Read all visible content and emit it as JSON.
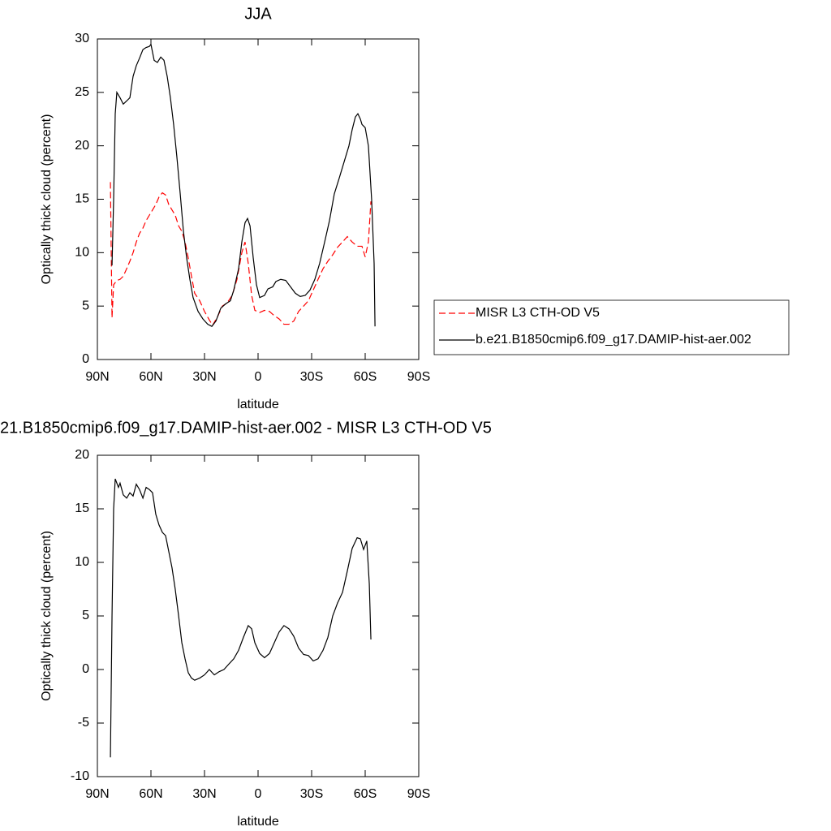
{
  "chart_data": [
    {
      "type": "line",
      "title": "JJA",
      "xlabel": "latitude",
      "ylabel": "Optically thick cloud (percent)",
      "xlim": [
        90,
        -90
      ],
      "ylim": [
        0,
        30
      ],
      "xticks": [
        {
          "value": 90,
          "label": "90N"
        },
        {
          "value": 60,
          "label": "60N"
        },
        {
          "value": 30,
          "label": "30N"
        },
        0,
        {
          "value": -30,
          "label": "30S"
        },
        {
          "value": -60,
          "label": "60S"
        },
        {
          "value": -90,
          "label": "90S"
        }
      ],
      "yticks": [
        0,
        5,
        10,
        15,
        20,
        25,
        30
      ],
      "legend": "right",
      "series": [
        {
          "name": "MISR L3 CTH-OD V5",
          "color": "#ff0000",
          "dash": true,
          "x": [
            82.7,
            81.8,
            80.9,
            79.1,
            77.3,
            75.5,
            73.6,
            71.8,
            70,
            68.2,
            66.4,
            64.5,
            62.7,
            60.9,
            59.1,
            57.3,
            55.5,
            53.6,
            51.8,
            50,
            48.2,
            46.4,
            44.5,
            42.7,
            40.9,
            39.1,
            37.3,
            35.5,
            32.7,
            30,
            27.3,
            25.5,
            22.7,
            20,
            17.3,
            14.5,
            11.8,
            9.1,
            7.3,
            5.5,
            3.6,
            1.8,
            -0.9,
            -3.6,
            -6.4,
            -9.1,
            -11.8,
            -14.5,
            -17.3,
            -20,
            -22.7,
            -25.5,
            -28.2,
            -30.9,
            -33.6,
            -36.4,
            -39.1,
            -41.8,
            -44.5,
            -47.3,
            -50,
            -52.7,
            -55.5,
            -58.2,
            -60,
            -61.8,
            -63.2
          ],
          "values": [
            16.6,
            3.9,
            7,
            7.4,
            7.5,
            7.8,
            8.5,
            9.2,
            10,
            11,
            11.8,
            12.3,
            13,
            13.5,
            14,
            14.5,
            15.2,
            15.6,
            15.4,
            14.5,
            14,
            13.5,
            12.5,
            12,
            11,
            9.5,
            7.8,
            6.2,
            5.5,
            4.5,
            3.7,
            3.2,
            4,
            5,
            5.3,
            6,
            7.5,
            10,
            11,
            9,
            6,
            4.6,
            4.4,
            4.6,
            4.5,
            4.1,
            3.8,
            3.3,
            3.3,
            3.6,
            4.5,
            5,
            5.5,
            6.5,
            7.5,
            8.5,
            9.2,
            9.8,
            10.5,
            11,
            11.5,
            11,
            10.6,
            10.6,
            9.6,
            11,
            14.8
          ]
        },
        {
          "name": "b.e21.B1850cmip6.f09_g17.DAMIP-hist-aer.002",
          "color": "#000000",
          "dash": false,
          "x": [
            81.8,
            80.9,
            80,
            79.1,
            77.3,
            75.5,
            73.6,
            71.8,
            70,
            68.2,
            66.4,
            64.5,
            62.7,
            60.9,
            60,
            58.2,
            56.4,
            54.5,
            52.7,
            50.9,
            49.1,
            47.3,
            45.5,
            43.6,
            41.8,
            40,
            38.2,
            36.4,
            33.6,
            30.9,
            28.2,
            25.9,
            23.6,
            20.9,
            18.2,
            15.5,
            13.6,
            10.9,
            9.1,
            7.3,
            5.9,
            4.5,
            2.7,
            0.9,
            -0.9,
            -3.6,
            -5.5,
            -8.2,
            -10,
            -12.7,
            -15.5,
            -18.2,
            -20.9,
            -23.6,
            -26.4,
            -29.1,
            -31.8,
            -34.5,
            -37.3,
            -40,
            -42.7,
            -45.5,
            -48.2,
            -50.9,
            -52.7,
            -54.5,
            -55.9,
            -57.3,
            -58.2,
            -60,
            -61.8,
            -63.6,
            -65,
            -65.5
          ],
          "values": [
            8.8,
            15,
            23,
            25,
            24.5,
            23.9,
            24.2,
            24.5,
            26.5,
            27.5,
            28.2,
            29,
            29.2,
            29.3,
            29.5,
            28,
            27.8,
            28.3,
            28,
            26.5,
            24.5,
            22,
            19,
            15.5,
            12,
            9.5,
            7.5,
            5.8,
            4.5,
            3.8,
            3.3,
            3.1,
            3.6,
            4.8,
            5.2,
            5.5,
            6.5,
            8.5,
            11,
            12.8,
            13.2,
            12.5,
            9.5,
            7,
            5.8,
            6,
            6.6,
            6.8,
            7.3,
            7.5,
            7.4,
            6.8,
            6.2,
            5.9,
            6,
            6.5,
            7.5,
            9,
            11,
            13,
            15.5,
            17,
            18.5,
            20,
            21.5,
            22.7,
            23,
            22.5,
            22,
            21.7,
            20,
            15,
            9,
            3.1
          ]
        }
      ]
    },
    {
      "type": "line",
      "title": "21.B1850cmip6.f09_g17.DAMIP-hist-aer.002 - MISR L3 CTH-OD V5",
      "xlabel": "latitude",
      "ylabel": "Optically thick cloud (percent)",
      "xlim": [
        90,
        -90
      ],
      "ylim": [
        -10,
        20
      ],
      "xticks": [
        {
          "value": 90,
          "label": "90N"
        },
        {
          "value": 60,
          "label": "60N"
        },
        {
          "value": 30,
          "label": "30N"
        },
        0,
        {
          "value": -30,
          "label": "30S"
        },
        {
          "value": -60,
          "label": "60S"
        },
        {
          "value": -90,
          "label": "90S"
        }
      ],
      "yticks": [
        -10,
        -5,
        0,
        5,
        10,
        15,
        20
      ],
      "series": [
        {
          "color": "#000000",
          "dash": false,
          "x": [
            82.7,
            81.8,
            80.9,
            80,
            78.2,
            77.3,
            75.5,
            73.6,
            71.8,
            70,
            68.2,
            66.4,
            64.5,
            62.7,
            60.9,
            59.1,
            57.3,
            55.5,
            53.6,
            51.8,
            50,
            48.2,
            46.4,
            44.5,
            42.7,
            40.9,
            39.1,
            37.3,
            35.5,
            32.7,
            30,
            27.3,
            24.5,
            21.8,
            19.1,
            16.4,
            13.6,
            10.9,
            8.2,
            5.5,
            3.6,
            1.8,
            -0.9,
            -3.6,
            -6.4,
            -9.1,
            -11.8,
            -14.5,
            -17.3,
            -20,
            -22.7,
            -25.5,
            -28.2,
            -30.9,
            -33.6,
            -36.4,
            -39.1,
            -41.8,
            -44.5,
            -47.3,
            -50,
            -52.7,
            -55.5,
            -57.3,
            -59.1,
            -60.9,
            -62.3,
            -63.2
          ],
          "values": [
            -8.2,
            5,
            15,
            17.8,
            17,
            17.4,
            16.3,
            16,
            16.5,
            16.2,
            17.3,
            16.8,
            16,
            17,
            16.8,
            16.5,
            14.5,
            13.5,
            12.8,
            12.5,
            11,
            9.5,
            7.5,
            5,
            2.5,
            1,
            -0.3,
            -0.8,
            -1,
            -0.8,
            -0.5,
            0,
            -0.5,
            -0.2,
            0,
            0.5,
            1,
            1.8,
            3,
            4.1,
            3.8,
            2.5,
            1.5,
            1.1,
            1.5,
            2.5,
            3.5,
            4.1,
            3.8,
            3.1,
            2,
            1.4,
            1.3,
            0.8,
            1,
            1.8,
            3,
            5,
            6.2,
            7.2,
            9.2,
            11.3,
            12.3,
            12.2,
            11.2,
            12,
            8,
            2.8
          ]
        }
      ]
    }
  ]
}
